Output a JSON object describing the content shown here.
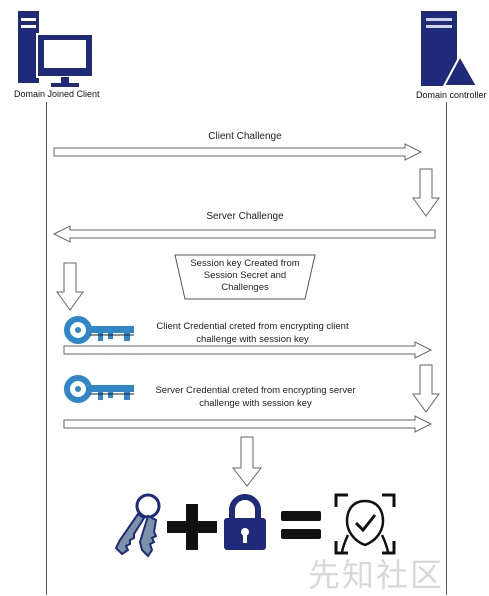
{
  "participants": {
    "client": {
      "label": "Domain Joined Client",
      "icon": "computer-icon"
    },
    "dc": {
      "label": "Domain controller",
      "icon": "server-icon"
    }
  },
  "messages": {
    "client_challenge": "Client Challenge",
    "server_challenge": "Server Challenge",
    "session_key": "Session key Created from Session Secret and Challenges",
    "client_credential": "Client Credential creted from encrypting client challenge with session key",
    "server_credential": "Server Credential creted from encrypting server challenge  with session key"
  },
  "equation": {
    "items": [
      "keys-icon",
      "plus-icon",
      "lock-icon",
      "equals-icon",
      "face-verified-icon"
    ]
  },
  "watermark": {
    "text": "先知社区"
  },
  "colors": {
    "primary": "#1f2a7a",
    "key_blue": "#2f86c9",
    "arrow_stroke": "#666666"
  }
}
